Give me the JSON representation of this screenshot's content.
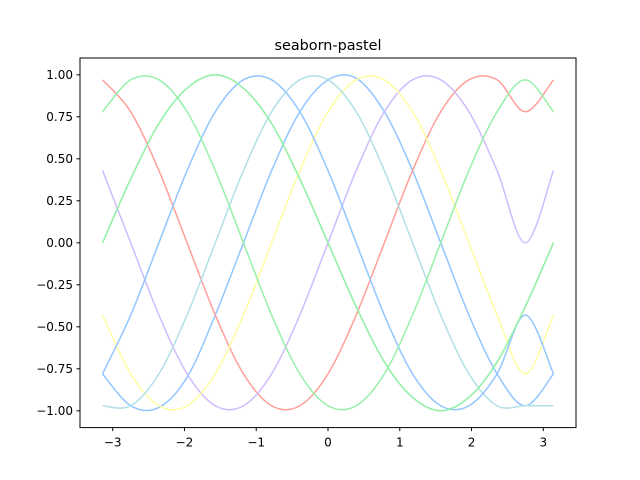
{
  "chart_data": {
    "type": "line",
    "title": "seaborn-pastel",
    "xlabel": "",
    "ylabel": "",
    "xlim": [
      -3.4557,
      3.4557
    ],
    "ylim": [
      -1.1,
      1.1
    ],
    "x_ticks": [
      -3,
      -2,
      -1,
      0,
      1,
      2,
      3
    ],
    "x_tick_labels": [
      "−3",
      "−2",
      "−1",
      "0",
      "1",
      "2",
      "3"
    ],
    "y_ticks": [
      -1.0,
      -0.75,
      -0.5,
      -0.25,
      0.0,
      0.25,
      0.5,
      0.75,
      1.0
    ],
    "y_tick_labels": [
      "−1.00",
      "−0.75",
      "−0.50",
      "−0.25",
      "0.00",
      "0.25",
      "0.50",
      "0.75",
      "1.00"
    ],
    "grid": false,
    "legend": "none",
    "x": [
      -3.1416,
      -2.7489,
      -2.3562,
      -1.9635,
      -1.5708,
      -1.1781,
      -0.7854,
      -0.3927,
      0.0,
      0.3927,
      0.7854,
      1.1781,
      1.5708,
      1.9635,
      2.3562,
      2.7489,
      3.1416
    ],
    "series": [
      {
        "color": "#92c6ff",
        "values": [
          -0.78,
          -0.97,
          -0.98,
          -0.8,
          -0.43,
          0.0,
          0.43,
          0.78,
          0.97,
          0.98,
          0.78,
          0.43,
          0.0,
          -0.43,
          -0.78,
          -0.97,
          -0.78
        ]
      },
      {
        "color": "#97f0aa",
        "values": [
          0.0,
          0.38,
          0.71,
          0.92,
          1.0,
          0.92,
          0.71,
          0.38,
          0.0,
          -0.38,
          -0.71,
          -0.92,
          -1.0,
          -0.92,
          -0.71,
          -0.38,
          0.0
        ]
      },
      {
        "color": "#ff9f9a",
        "values": [
          0.97,
          0.78,
          0.43,
          0.0,
          -0.43,
          -0.78,
          -0.97,
          -0.97,
          -0.78,
          -0.43,
          0.0,
          0.43,
          0.78,
          0.97,
          0.97,
          0.78,
          0.97
        ]
      },
      {
        "color": "#d0bbff",
        "values": [
          0.43,
          0.0,
          -0.43,
          -0.78,
          -0.97,
          -0.97,
          -0.78,
          -0.43,
          0.0,
          0.43,
          0.78,
          0.97,
          0.97,
          0.78,
          0.43,
          0.0,
          0.43
        ]
      },
      {
        "color": "#fffea3",
        "values": [
          -0.43,
          -0.78,
          -0.97,
          -0.97,
          -0.78,
          -0.43,
          0.0,
          0.43,
          0.78,
          0.97,
          0.97,
          0.78,
          0.43,
          0.0,
          -0.43,
          -0.78,
          -0.43
        ]
      },
      {
        "color": "#b0e0e6",
        "values": [
          -0.97,
          -0.97,
          -0.78,
          -0.43,
          0.0,
          0.43,
          0.78,
          0.97,
          0.97,
          0.78,
          0.43,
          0.0,
          -0.43,
          -0.78,
          -0.97,
          -0.97,
          -0.97
        ]
      },
      {
        "color": "#92c6ff",
        "values": [
          -0.78,
          -0.43,
          0.0,
          0.43,
          0.78,
          0.97,
          0.97,
          0.78,
          0.43,
          0.0,
          -0.43,
          -0.78,
          -0.97,
          -0.97,
          -0.78,
          -0.43,
          -0.78
        ]
      },
      {
        "color": "#97f0aa",
        "values": [
          0.78,
          0.97,
          0.97,
          0.78,
          0.43,
          0.0,
          -0.43,
          -0.78,
          -0.97,
          -0.97,
          -0.78,
          -0.43,
          0.0,
          0.43,
          0.78,
          0.97,
          0.78
        ]
      },
      {
        "color": "#97f0aa",
        "values": [
          0.0,
          0.38,
          0.71,
          0.92,
          1.0,
          0.92,
          0.71,
          0.38,
          0.0,
          -0.38,
          -0.71,
          -0.92,
          -1.0,
          -0.92,
          -0.71,
          -0.38,
          0.0
        ]
      }
    ]
  }
}
